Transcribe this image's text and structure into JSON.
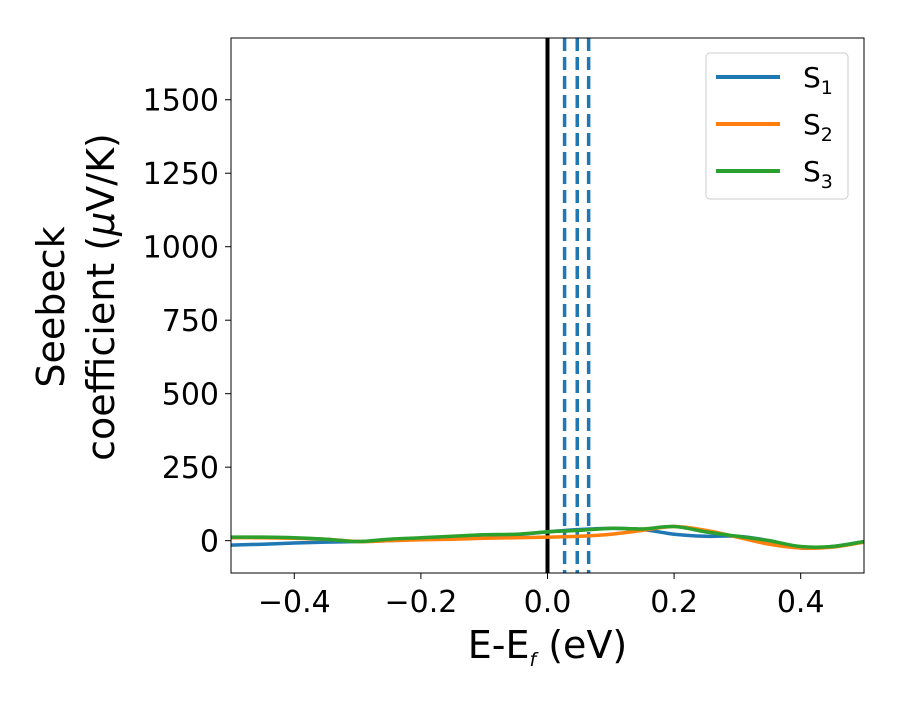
{
  "chart_data": {
    "type": "line",
    "xlabel": "E-E",
    "xlabel_sub": "f",
    "xlabel_units": " (eV)",
    "ylabel_line1": "Seebeck",
    "ylabel_line2": "coefficient  (",
    "ylabel_mu": "μ",
    "ylabel_units": "V/K)",
    "xlim": [
      -0.5,
      0.5
    ],
    "ylim": [
      -110,
      1710
    ],
    "xticks": [
      -0.4,
      -0.2,
      0.0,
      0.2,
      0.4
    ],
    "xtick_labels": [
      "−0.4",
      "−0.2",
      "0.0",
      "0.2",
      "0.4"
    ],
    "yticks": [
      0,
      250,
      500,
      750,
      1000,
      1250,
      1500
    ],
    "ytick_labels": [
      "0",
      "250",
      "500",
      "750",
      "1000",
      "1250",
      "1500"
    ],
    "legend_position": "upper-right",
    "grid": false,
    "series": [
      {
        "name": "S",
        "name_sub": "1",
        "color": "#1f77b4",
        "x": [
          -0.5,
          -0.45,
          -0.4,
          -0.35,
          -0.3,
          -0.25,
          -0.2,
          -0.15,
          -0.1,
          -0.05,
          0.0,
          0.05,
          0.1,
          0.15,
          0.2,
          0.25,
          0.3,
          0.35,
          0.4,
          0.45,
          0.5
        ],
        "y": [
          -15,
          -12,
          -8,
          -5,
          -3,
          0,
          5,
          10,
          15,
          20,
          30,
          38,
          42,
          38,
          22,
          15,
          15,
          0,
          -25,
          -20,
          -3
        ]
      },
      {
        "name": "S",
        "name_sub": "2",
        "color": "#ff7f0e",
        "x": [
          -0.5,
          -0.45,
          -0.4,
          -0.35,
          -0.3,
          -0.25,
          -0.2,
          -0.15,
          -0.1,
          -0.05,
          0.0,
          0.05,
          0.1,
          0.15,
          0.2,
          0.25,
          0.3,
          0.35,
          0.4,
          0.45,
          0.5
        ],
        "y": [
          10,
          10,
          8,
          5,
          -3,
          0,
          3,
          5,
          8,
          10,
          12,
          15,
          22,
          35,
          48,
          35,
          12,
          -12,
          -25,
          -22,
          -5
        ]
      },
      {
        "name": "S",
        "name_sub": "3",
        "color": "#2ca02c",
        "x": [
          -0.5,
          -0.45,
          -0.4,
          -0.35,
          -0.3,
          -0.25,
          -0.2,
          -0.15,
          -0.1,
          -0.05,
          0.0,
          0.05,
          0.1,
          0.15,
          0.2,
          0.25,
          0.3,
          0.35,
          0.4,
          0.45,
          0.5
        ],
        "y": [
          12,
          12,
          10,
          5,
          -3,
          5,
          10,
          15,
          20,
          22,
          30,
          35,
          42,
          40,
          48,
          30,
          15,
          0,
          -20,
          -20,
          -3
        ]
      }
    ],
    "vlines": [
      {
        "x": 0.0,
        "color": "#000000",
        "style": "solid"
      },
      {
        "x": 0.027,
        "color": "#1f77b4",
        "style": "dashed"
      },
      {
        "x": 0.047,
        "color": "#1f77b4",
        "style": "dashed"
      },
      {
        "x": 0.065,
        "color": "#1f77b4",
        "style": "dashed"
      }
    ]
  }
}
